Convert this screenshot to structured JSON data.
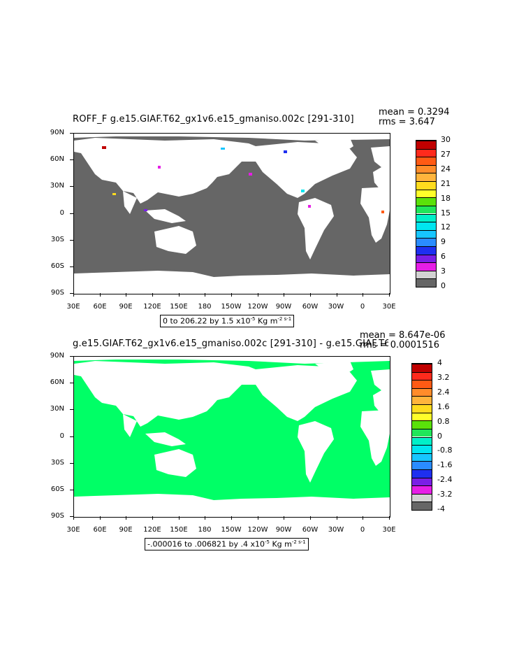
{
  "panels": [
    {
      "title": "ROFF_F g.e15.GIAF.T62_gx1v6.e15_gmaniso.002c [291-310]",
      "mean_label": "mean = 0.3294",
      "rms_label": "rms = 3.647",
      "info": "0 to 206.22 by 1.5 x10",
      "info_exp": "-5",
      "info_units": " Kg m",
      "info_units_exp": "-2 s-1",
      "ocean_color": "#666666",
      "colorbar": {
        "labels": [
          "30",
          "27",
          "24",
          "21",
          "18",
          "15",
          "12",
          "9",
          "6",
          "3",
          "0"
        ],
        "colors": [
          "#c00000",
          "#ff2a1c",
          "#ff5a14",
          "#ff8c2a",
          "#ffb43c",
          "#ffdc1e",
          "#ffff2a",
          "#5ae10a",
          "#20e65a",
          "#00f0c8",
          "#00e6f0",
          "#17c6ff",
          "#2a8cff",
          "#1e2ff0",
          "#7a1ee6",
          "#e61ee6",
          "#d2d2d2",
          "#666666"
        ]
      }
    },
    {
      "title": "g.e15.GIAF.T62_gx1v6.e15_gmaniso.002c [291-310] - g.e15.GIAF.T62_gx1v6.e15_",
      "mean_label": "mean = 8.647e-06",
      "rms_label": "rms = 0.0001516",
      "info": "-.000016 to .006821 by .4 x10",
      "info_exp": "-5",
      "info_units": " Kg m",
      "info_units_exp": "-2 s-1",
      "ocean_color": "#00ff66",
      "colorbar": {
        "labels": [
          "4",
          "3.2",
          "2.4",
          "1.6",
          "0.8",
          "0",
          "-0.8",
          "-1.6",
          "-2.4",
          "-3.2",
          "-4"
        ],
        "colors": [
          "#c00000",
          "#ff2a1c",
          "#ff5a14",
          "#ff8c2a",
          "#ffb43c",
          "#ffdc1e",
          "#ffff2a",
          "#5ae10a",
          "#20e65a",
          "#00f0c8",
          "#00e6f0",
          "#17c6ff",
          "#2a8cff",
          "#1e2ff0",
          "#7a1ee6",
          "#e61ee6",
          "#d2d2d2",
          "#666666"
        ]
      }
    }
  ],
  "lat_labels": [
    "90N",
    "60N",
    "30N",
    "0",
    "30S",
    "60S",
    "90S"
  ],
  "lon_labels": [
    "30E",
    "60E",
    "90E",
    "120E",
    "150E",
    "180",
    "150W",
    "120W",
    "90W",
    "60W",
    "30W",
    "0",
    "30E"
  ]
}
